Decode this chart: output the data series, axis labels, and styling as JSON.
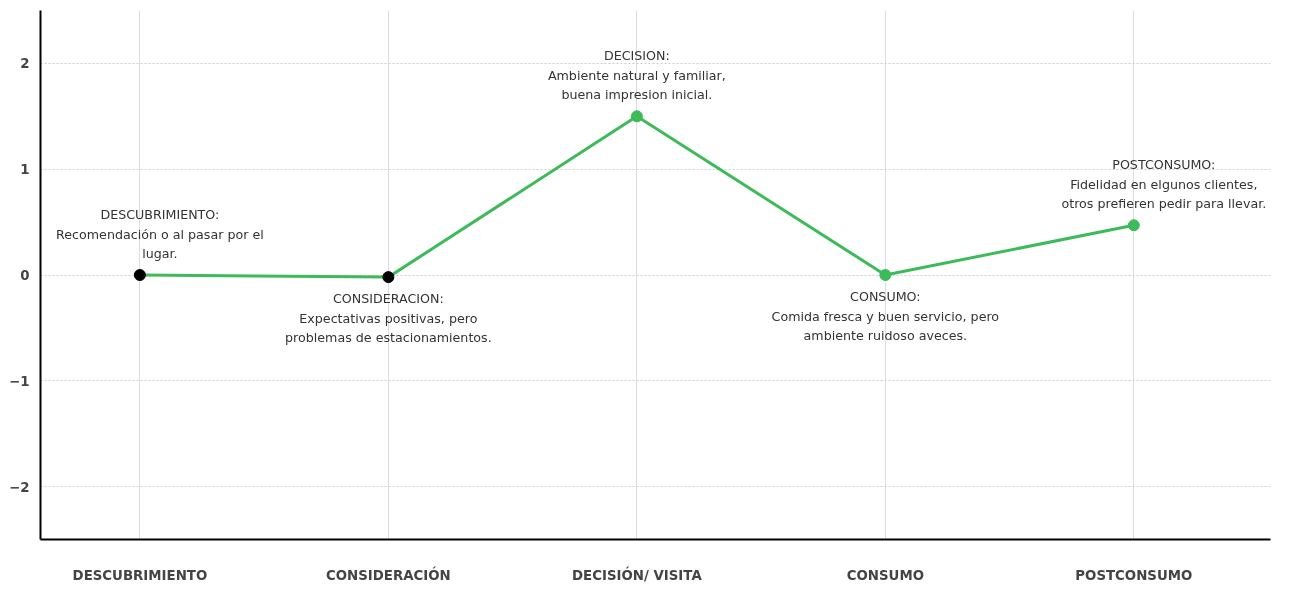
{
  "chart_data": {
    "type": "line",
    "categories": [
      "DESCUBRIMIENTO",
      "CONSIDERACIÓN",
      "DECISIÓN/ VISITA",
      "CONSUMO",
      "POSTCONSUMO"
    ],
    "series": [
      {
        "color": "#3dba5a",
        "colors": [
          "#000000",
          "#000000",
          "#3dba5a",
          "#3dba5a",
          "#3dba5a"
        ],
        "values": [
          0,
          -0.02,
          1.5,
          0,
          0.47
        ]
      }
    ],
    "ylim": [
      -2.5,
      2.5
    ],
    "yticks": [
      -2,
      -1,
      0,
      1,
      2
    ],
    "grid": true,
    "marker": "circle",
    "line_style": "solid",
    "annotations": [
      {
        "text": "DESCUBRIMIENTO:\nRecomendación o al pasar por el\nlugar.",
        "x": "DESCUBRIMIENTO",
        "y": 0
      },
      {
        "text": "CONSIDERACION:\nExpectativas positivas, pero\nproblemas de estacionamientos.",
        "x": "CONSIDERACIÓN",
        "y": -0.02
      },
      {
        "text": "DECISION:\nAmbiente natural y familiar,\nbuena impresion inicial.",
        "x": "DECISIÓN/ VISITA",
        "y": 1.5
      },
      {
        "text": "CONSUMO:\nComida fresca y buen servicio, pero\nambiente ruidoso aveces.",
        "x": "CONSUMO",
        "y": 0
      },
      {
        "text": "POSTCONSUMO:\nFidelidad en elgunos clientes,\notros prefieren pedir para llevar.",
        "x": "POSTCONSUMO",
        "y": 0.47
      }
    ]
  }
}
